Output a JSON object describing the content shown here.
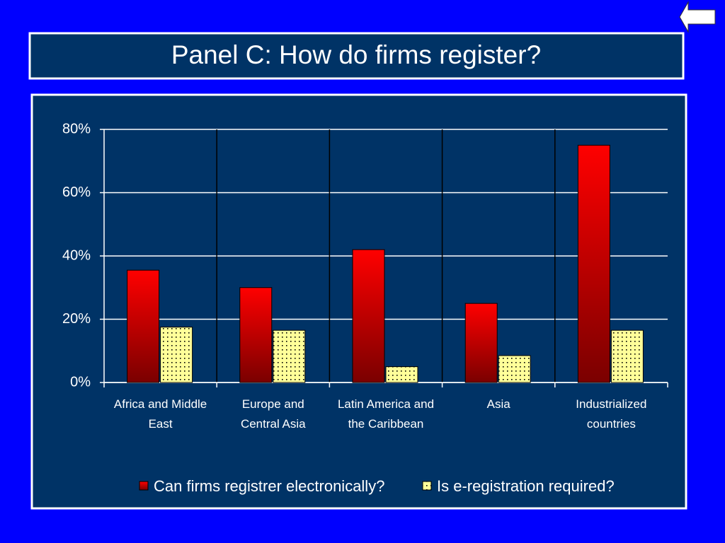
{
  "chart_data": {
    "type": "bar",
    "title": "Panel C: How do firms register?",
    "categories": [
      "Africa and Middle East",
      "Europe and Central Asia",
      "Latin America and the Caribbean",
      "Asia",
      "Industrialized countries"
    ],
    "series": [
      {
        "name": "Can firms registrer electronically?",
        "color": "#ff0000",
        "values": [
          35.5,
          30,
          42,
          25,
          75
        ]
      },
      {
        "name": "Is e-registration required?",
        "color": "#ffff99",
        "values": [
          17.5,
          16.5,
          5,
          8.5,
          16.5
        ]
      }
    ],
    "ylim": [
      0,
      80
    ],
    "yticks": [
      {
        "value": 0,
        "label": "0%"
      },
      {
        "value": 20,
        "label": "20%"
      },
      {
        "value": 40,
        "label": "40%"
      },
      {
        "value": 60,
        "label": "60%"
      },
      {
        "value": 80,
        "label": "80%"
      }
    ],
    "grid": true
  }
}
